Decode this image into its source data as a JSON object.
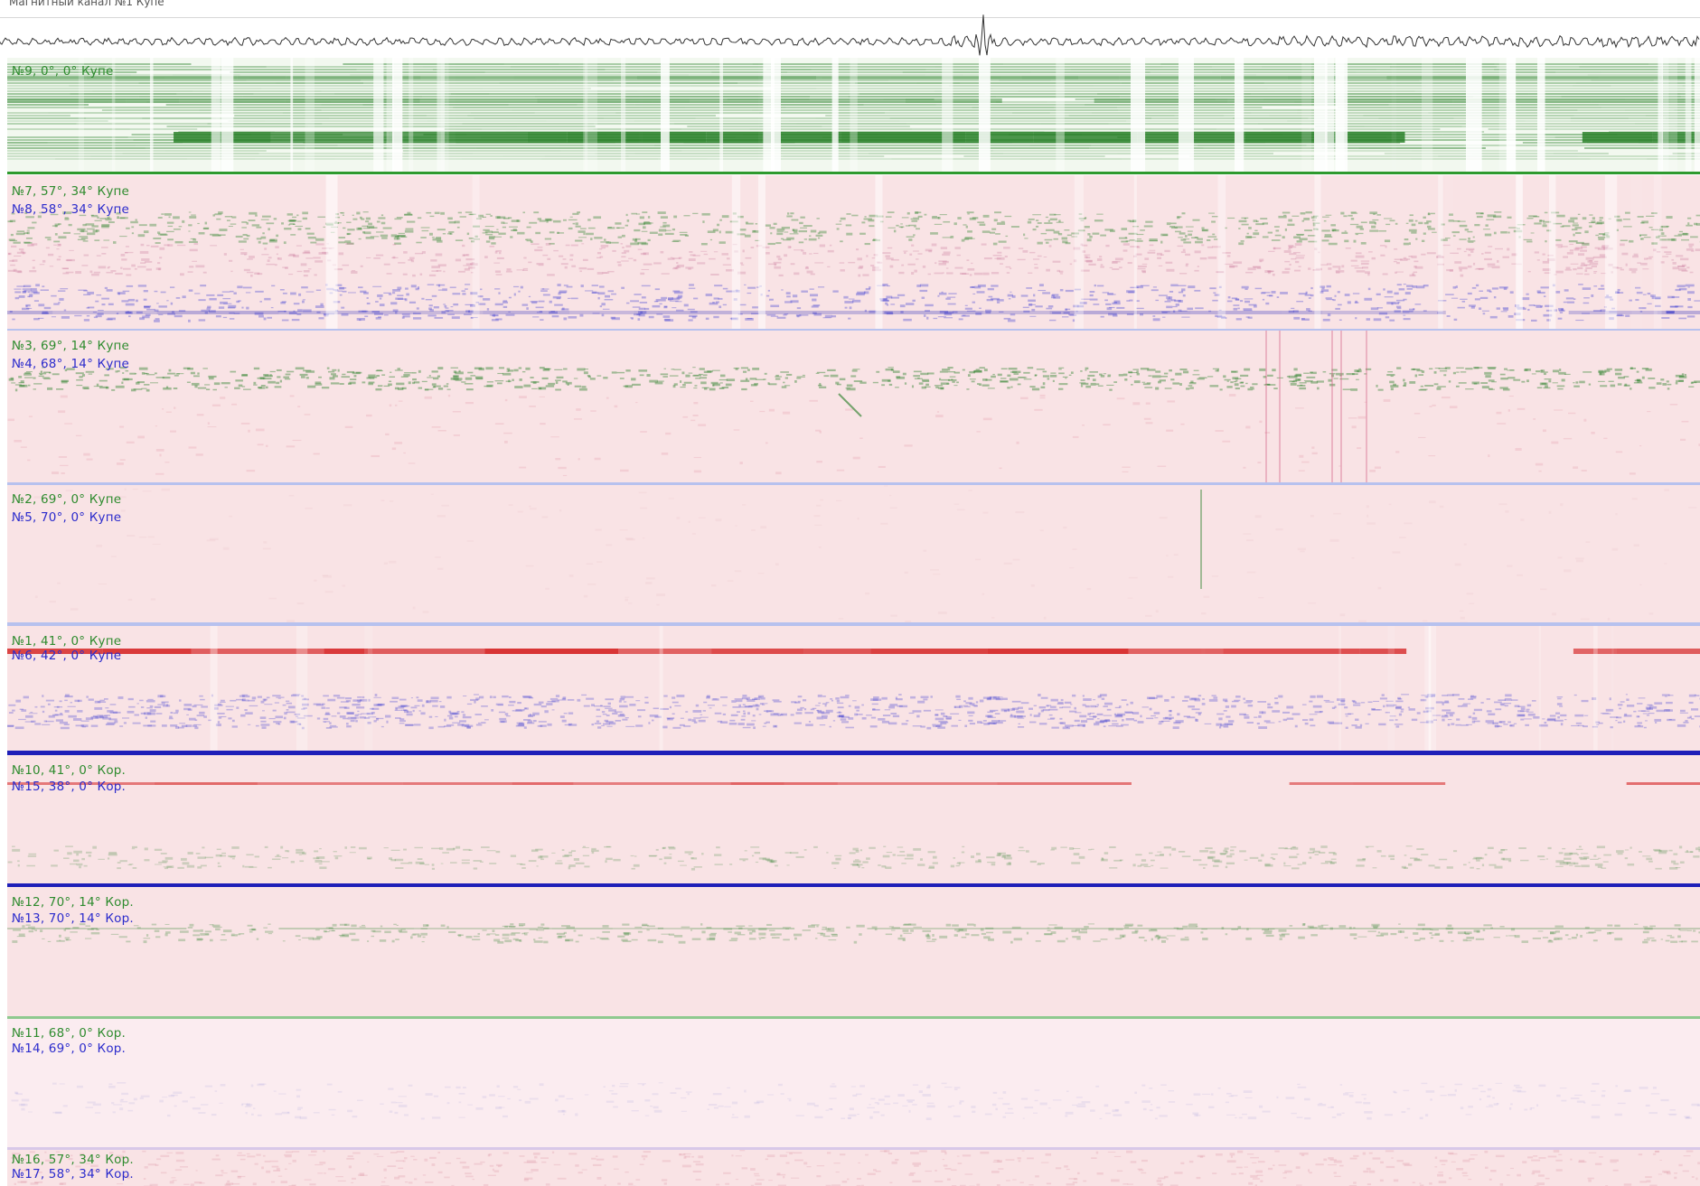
{
  "title": "Магнитный канал №1 Купе",
  "colors": {
    "green_label": "#2e8b2e",
    "blue_label": "#2b2bcc",
    "pink_bg": "#f9e3e5",
    "light_pink_bg": "#fbecf0",
    "green_band": "#1e7a1e",
    "red_band": "#d41f1f",
    "blue_band": "#1f1fb8",
    "divider_blue": "#b7c1ee",
    "divider_green": "#2e9a2e"
  },
  "panels": [
    {
      "id": "ch9",
      "labels": [
        "№9, 0°, 0° Купе"
      ],
      "label_colors": [
        "#2e8b2e"
      ],
      "scheme": "green"
    },
    {
      "id": "ch7-8",
      "labels": [
        "№7, 57°, 34° Купе",
        "№8, 58°, 34° Купе"
      ],
      "label_colors": [
        "#2e8b2e",
        "#2b2bcc"
      ],
      "scheme": "mixed"
    },
    {
      "id": "ch3-4",
      "labels": [
        "№3, 69°, 14° Купе",
        "№4, 68°, 14° Купе"
      ],
      "label_colors": [
        "#2e8b2e",
        "#2b2bcc"
      ],
      "scheme": "mixed-light"
    },
    {
      "id": "ch2-5",
      "labels": [
        "№2, 69°, 0° Купе",
        "№5, 70°, 0° Купе"
      ],
      "label_colors": [
        "#2e8b2e",
        "#2b2bcc"
      ],
      "scheme": "pink"
    },
    {
      "id": "ch1-6",
      "labels": [
        "№1, 41°, 0° Купе",
        "№6, 42°, 0° Купе"
      ],
      "label_colors": [
        "#2e8b2e",
        "#2b2bcc"
      ],
      "scheme": "red-band"
    },
    {
      "id": "ch10-15",
      "labels": [
        "№10, 41°, 0° Кор.",
        "№15, 38°, 0° Кор."
      ],
      "label_colors": [
        "#2e8b2e",
        "#2b2bcc"
      ],
      "scheme": "red-thin"
    },
    {
      "id": "ch12-13",
      "labels": [
        "№12, 70°, 14° Кор.",
        "№13, 70°, 14° Кор."
      ],
      "label_colors": [
        "#2e8b2e",
        "#2b2bcc"
      ],
      "scheme": "green-thin"
    },
    {
      "id": "ch11-14",
      "labels": [
        "№11, 68°, 0° Кор.",
        "№14, 69°, 0° Кор."
      ],
      "label_colors": [
        "#2e8b2e",
        "#2b2bcc"
      ],
      "scheme": "light"
    },
    {
      "id": "ch16-17",
      "labels": [
        "№16, 57°, 34° Кор.",
        "№17, 58°, 34° Кор."
      ],
      "label_colors": [
        "#2e8b2e",
        "#2b2bcc"
      ],
      "scheme": "noise"
    }
  ]
}
